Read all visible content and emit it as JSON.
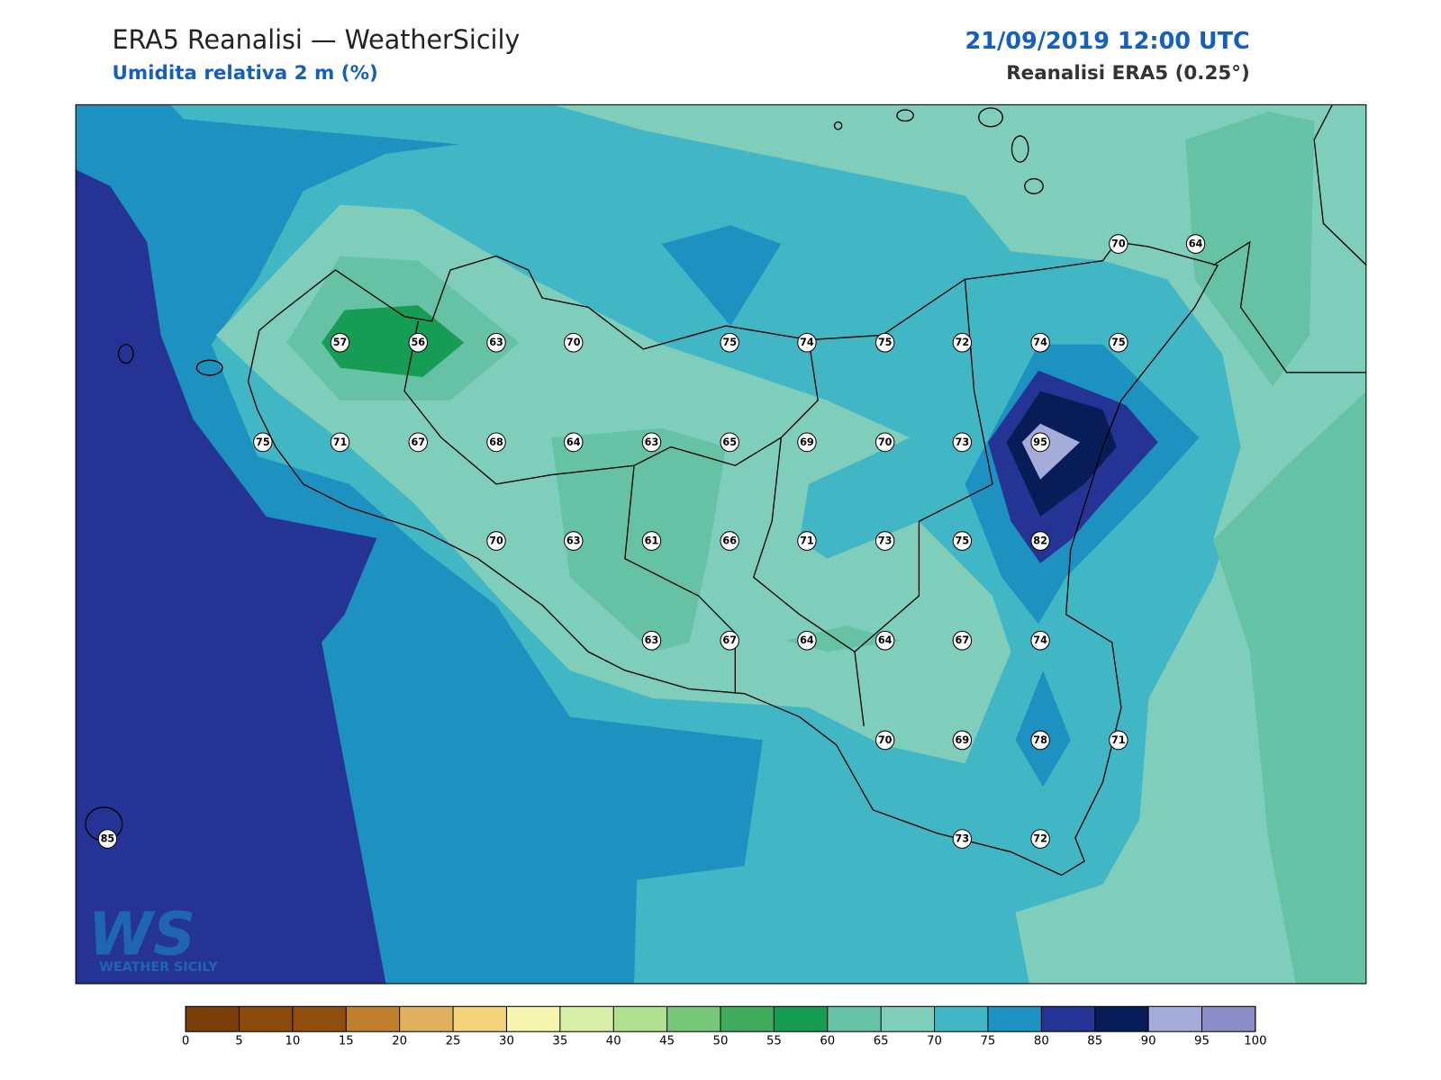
{
  "header": {
    "title": "ERA5 Reanalisi — WeatherSicily",
    "subtitle": "Umidita relativa 2 m (%)",
    "date": "21/09/2019 12:00 UTC",
    "source": "Reanalisi ERA5 (0.25°)"
  },
  "map": {
    "stations": [
      70,
      64,
      57,
      56,
      63,
      70,
      75,
      74,
      75,
      72,
      74,
      75,
      75,
      71,
      67,
      68,
      64,
      63,
      65,
      69,
      70,
      73,
      95,
      70,
      63,
      61,
      66,
      71,
      73,
      75,
      82,
      63,
      67,
      64,
      64,
      67,
      74,
      70,
      69,
      78,
      71,
      73,
      72,
      85
    ]
  },
  "colorbar": {
    "ticks": [
      0,
      5,
      10,
      15,
      20,
      25,
      30,
      35,
      40,
      45,
      50,
      55,
      60,
      65,
      70,
      75,
      80,
      85,
      90,
      95,
      100
    ],
    "colors": [
      "#7a3f08",
      "#8a4a0c",
      "#8f4d0e",
      "#c0802e",
      "#e0b060",
      "#f2d27a",
      "#f5f5b0",
      "#d8efa8",
      "#b0e090",
      "#78c679",
      "#41ab5d",
      "#169c55",
      "#66c2a4",
      "#7fcdbb",
      "#41b6c4",
      "#1d91c0",
      "#253494",
      "#081d58",
      "#a6acd9",
      "#8c8cc8"
    ]
  },
  "logo": {
    "mark": "WS",
    "text": "WEATHER SICILY"
  }
}
